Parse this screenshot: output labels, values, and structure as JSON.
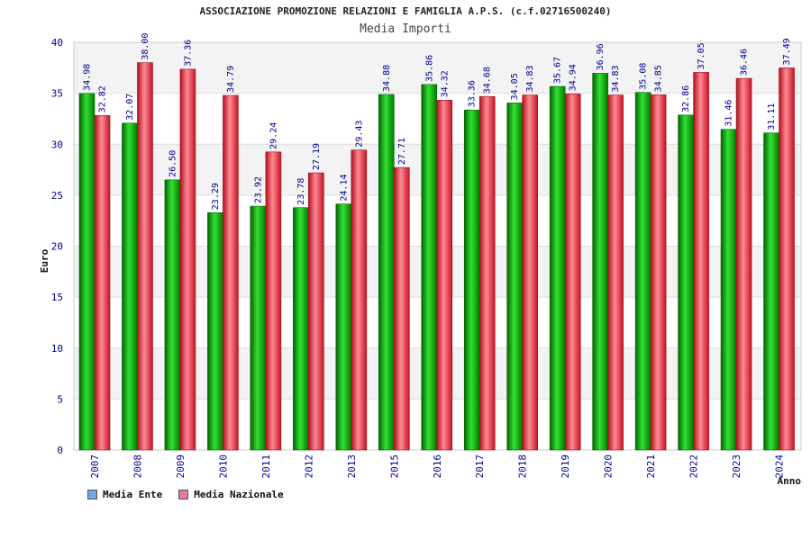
{
  "header": {
    "title": "ASSOCIAZIONE PROMOZIONE RELAZIONI E FAMIGLIA A.P.S. (c.f.02716500240)",
    "subtitle": "Media Importi"
  },
  "colors": {
    "series1": "#00b400",
    "series2": "#e8303a",
    "legend1": "#6fa8ea",
    "legend2": "#e27aa8",
    "axis_text": "#000099"
  },
  "legend": [
    {
      "label": "Media Ente"
    },
    {
      "label": "Media Nazionale"
    }
  ],
  "chart_data": {
    "type": "bar",
    "title": "Media Importi",
    "xlabel": "Anno",
    "ylabel": "Euro",
    "ylim": [
      0,
      40
    ],
    "yticks": [
      0,
      5,
      10,
      15,
      20,
      25,
      30,
      35,
      40
    ],
    "categories": [
      "2007",
      "2008",
      "2009",
      "2010",
      "2011",
      "2012",
      "2013",
      "2015",
      "2016",
      "2017",
      "2018",
      "2019",
      "2020",
      "2021",
      "2022",
      "2023",
      "2024"
    ],
    "series": [
      {
        "name": "Media Ente",
        "values": [
          34.98,
          32.07,
          26.5,
          23.29,
          23.92,
          23.78,
          24.14,
          34.88,
          35.86,
          33.36,
          34.05,
          35.67,
          36.96,
          35.08,
          32.86,
          31.46,
          31.11
        ]
      },
      {
        "name": "Media Nazionale",
        "values": [
          32.82,
          38.0,
          37.36,
          34.79,
          29.24,
          27.19,
          29.43,
          27.71,
          34.32,
          34.68,
          34.83,
          34.94,
          34.83,
          34.85,
          37.05,
          36.46,
          37.49
        ]
      }
    ],
    "grid": true,
    "legend_position": "bottom-left"
  }
}
